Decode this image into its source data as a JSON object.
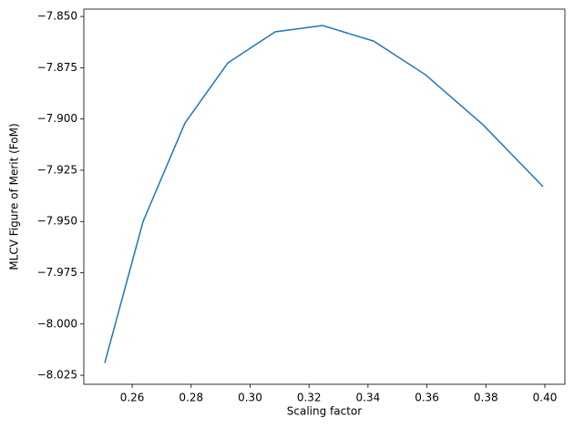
{
  "chart_data": {
    "type": "line",
    "xlabel": "Scaling factor",
    "ylabel": "MLCV Figure of Merit (FoM)",
    "series": [
      {
        "color": "#1f77b4",
        "x": [
          0.2507,
          0.2637,
          0.2779,
          0.2925,
          0.3085,
          0.3246,
          0.3419,
          0.3595,
          0.379,
          0.3994
        ],
        "values": [
          -8.019,
          -7.95,
          -7.902,
          -7.8726,
          -7.8575,
          -7.8544,
          -7.862,
          -7.8784,
          -7.9028,
          -7.933
        ]
      }
    ],
    "xlim": [
      0.2436,
      0.4068
    ],
    "ylim": [
      -8.0294,
      -7.8464
    ],
    "xticks": [
      {
        "value": 0.26,
        "label": "0.26"
      },
      {
        "value": 0.28,
        "label": "0.28"
      },
      {
        "value": 0.3,
        "label": "0.30"
      },
      {
        "value": 0.32,
        "label": "0.32"
      },
      {
        "value": 0.34,
        "label": "0.34"
      },
      {
        "value": 0.36,
        "label": "0.36"
      },
      {
        "value": 0.38,
        "label": "0.38"
      },
      {
        "value": 0.4,
        "label": "0.40"
      }
    ],
    "yticks": [
      {
        "value": -8.025,
        "label": "−8.025"
      },
      {
        "value": -8.0,
        "label": "−8.000"
      },
      {
        "value": -7.975,
        "label": "−7.975"
      },
      {
        "value": -7.95,
        "label": "−7.950"
      },
      {
        "value": -7.925,
        "label": "−7.925"
      },
      {
        "value": -7.9,
        "label": "−7.900"
      },
      {
        "value": -7.875,
        "label": "−7.875"
      },
      {
        "value": -7.85,
        "label": "−7.850"
      }
    ]
  }
}
